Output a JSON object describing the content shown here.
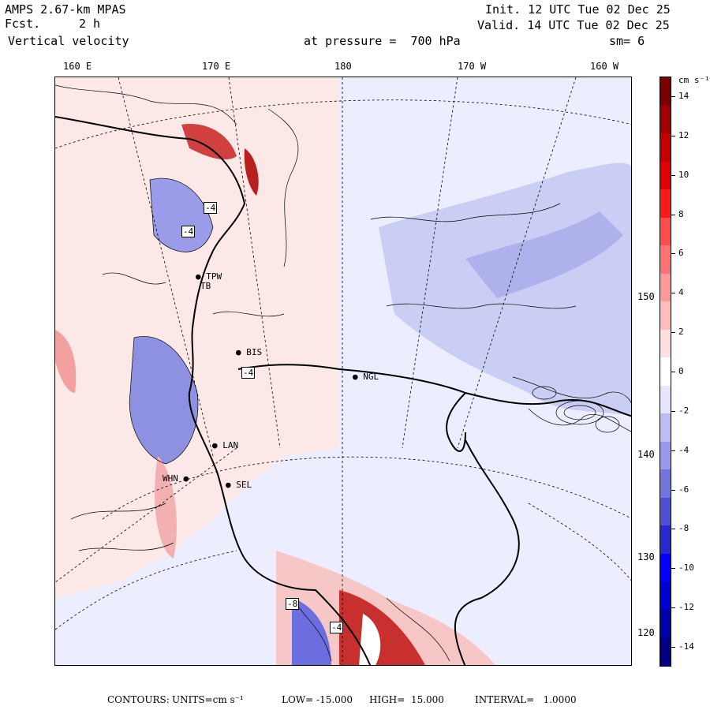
{
  "header": {
    "model": "AMPS 2.67-km MPAS",
    "forecast_label": "Fcst.",
    "forecast_value": "2 h",
    "field": "Vertical velocity",
    "init": "Init. 12 UTC Tue 02 Dec 25",
    "valid": "Valid. 14 UTC Tue 02 Dec 25",
    "level": "at pressure =  700 hPa",
    "smoothing": "sm= 6"
  },
  "longitude_labels": [
    "160 E",
    "170 E",
    "180",
    "170 W",
    "160 W"
  ],
  "latitude_labels": [
    "150 W",
    "140 W",
    "130 W",
    "120 W"
  ],
  "stations": [
    "BIS",
    "NGL",
    "LAN",
    "WHN",
    "SEL",
    "TPW",
    "TB"
  ],
  "contour_labels": [
    "-4",
    "-4",
    "-4",
    "-8",
    "-4"
  ],
  "colorbar": {
    "unit": "cm s⁻¹",
    "labels": [
      "14",
      "12",
      "10",
      "8",
      "6",
      "4",
      "2",
      "0",
      "-2",
      "-4",
      "-6",
      "-8",
      "-10",
      "-12",
      "-14"
    ],
    "colors": [
      "#7a0000",
      "#a00000",
      "#c20000",
      "#e00000",
      "#ff1a1a",
      "#ff4d4d",
      "#ff7373",
      "#ff9999",
      "#ffbdbd",
      "#ffe0e0",
      "#ffffff",
      "#e6e6ff",
      "#bdbdf5",
      "#9a9aec",
      "#7575e0",
      "#5050d6",
      "#2828cc",
      "#0000ff",
      "#0000d0",
      "#0000a8",
      "#000080"
    ],
    "value_range": [
      -15,
      15
    ]
  },
  "footer": {
    "contours_label": "CONTOURS:",
    "units_text": "UNITS=cm s⁻¹",
    "low_text": "LOW= -15.000",
    "high_text": "HIGH=  15.000",
    "interval_text": "INTERVAL=   1.0000"
  }
}
